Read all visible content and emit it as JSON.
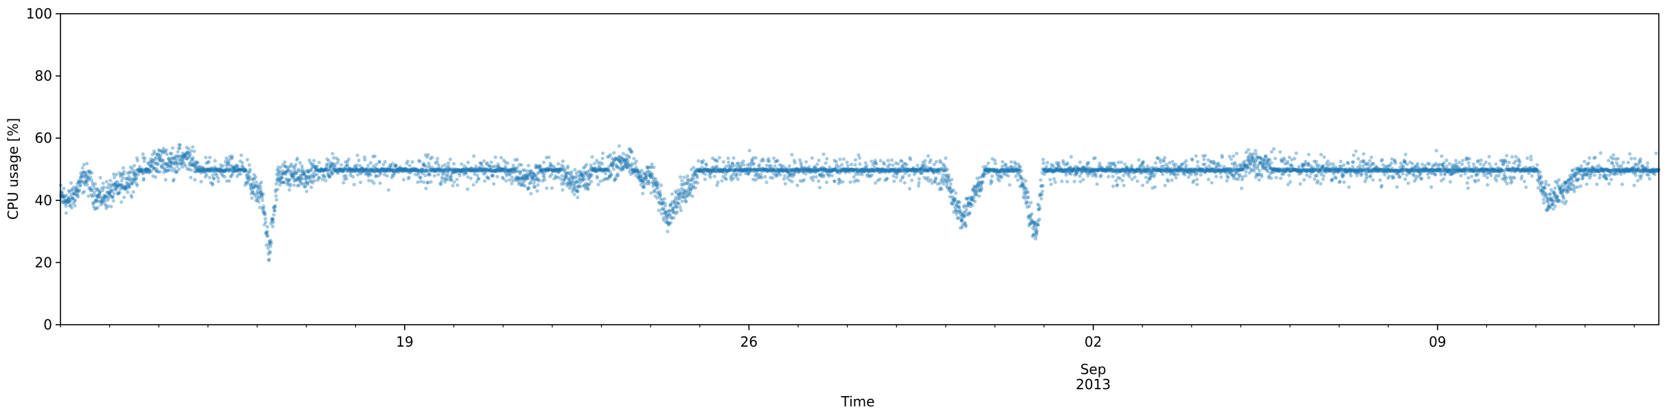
{
  "chart_data": {
    "type": "scatter",
    "title": "",
    "xlabel": "Time",
    "ylabel": "CPU usage [%]",
    "ylim": [
      0,
      100
    ],
    "yticks": [
      0,
      20,
      40,
      60,
      80,
      100
    ],
    "xlim": [
      "2013-08-12T00:00",
      "2013-09-13T12:00"
    ],
    "x_major_ticks": [
      {
        "date": "2013-08-19",
        "label": "19"
      },
      {
        "date": "2013-08-26",
        "label": "26"
      },
      {
        "date": "2013-09-02",
        "label": "02",
        "sublabel": [
          "Sep",
          "2013"
        ]
      },
      {
        "date": "2013-09-09",
        "label": "09"
      }
    ],
    "x_minor_tick_interval": "1 day",
    "grid": false,
    "legend": "none",
    "series": [
      {
        "color": "#1f77b4",
        "alpha": 0.4,
        "marker": "circle",
        "baseline_value": 49.7,
        "points": [
          [
            "2013-08-12T01:00",
            41
          ],
          [
            "2013-08-12T04:00",
            39.5
          ],
          [
            "2013-08-12T08:00",
            43
          ],
          [
            "2013-08-12T12:00",
            48
          ],
          [
            "2013-08-12T18:00",
            41
          ],
          [
            "2013-08-13T00:00",
            42
          ],
          [
            "2013-08-13T06:00",
            45
          ],
          [
            "2013-08-13T12:00",
            48
          ],
          [
            "2013-08-13T18:00",
            50
          ],
          [
            "2013-08-14T00:00",
            53
          ],
          [
            "2013-08-14T06:00",
            52
          ],
          [
            "2013-08-14T12:00",
            54
          ],
          [
            "2013-08-14T18:00",
            51
          ],
          [
            "2013-08-15T00:00",
            50
          ],
          [
            "2013-08-15T06:00",
            49
          ],
          [
            "2013-08-15T12:00",
            51
          ],
          [
            "2013-08-15T18:00",
            50
          ],
          [
            "2013-08-15T22:00",
            44
          ],
          [
            "2013-08-16T02:00",
            42
          ],
          [
            "2013-08-16T06:00",
            23.5
          ],
          [
            "2013-08-16T10:00",
            47
          ],
          [
            "2013-08-16T18:00",
            48
          ],
          [
            "2013-08-17T00:00",
            47
          ],
          [
            "2013-08-17T12:00",
            51
          ],
          [
            "2013-08-18T00:00",
            50
          ],
          [
            "2013-08-18T12:00",
            49
          ],
          [
            "2013-08-19T00:00",
            50
          ],
          [
            "2013-08-20T00:00",
            49
          ],
          [
            "2013-08-21T00:00",
            50
          ],
          [
            "2013-08-21T12:00",
            47
          ],
          [
            "2013-08-22T00:00",
            50
          ],
          [
            "2013-08-22T12:00",
            46
          ],
          [
            "2013-08-23T00:00",
            50
          ],
          [
            "2013-08-23T12:00",
            53
          ],
          [
            "2013-08-23T20:00",
            47
          ],
          [
            "2013-08-24T00:00",
            48
          ],
          [
            "2013-08-24T08:00",
            35.5
          ],
          [
            "2013-08-25T00:00",
            50
          ],
          [
            "2013-08-26T00:00",
            50
          ],
          [
            "2013-08-27T00:00",
            49
          ],
          [
            "2013-08-28T00:00",
            50
          ],
          [
            "2013-08-29T00:00",
            49
          ],
          [
            "2013-08-29T12:00",
            50
          ],
          [
            "2013-08-30T00:00",
            48
          ],
          [
            "2013-08-30T08:00",
            33.5
          ],
          [
            "2013-08-30T20:00",
            50
          ],
          [
            "2013-08-31T12:00",
            49
          ],
          [
            "2013-08-31T20:00",
            28.5
          ],
          [
            "2013-09-01T00:00",
            50
          ],
          [
            "2013-09-02T00:00",
            50
          ],
          [
            "2013-09-03T00:00",
            49
          ],
          [
            "2013-09-03T12:00",
            50
          ],
          [
            "2013-09-04T00:00",
            50
          ],
          [
            "2013-09-05T00:00",
            50
          ],
          [
            "2013-09-05T04:00",
            52
          ],
          [
            "2013-09-06T00:00",
            50
          ],
          [
            "2013-09-07T00:00",
            50
          ],
          [
            "2013-09-08T00:00",
            50
          ],
          [
            "2013-09-09T00:00",
            50
          ],
          [
            "2013-09-10T00:00",
            50
          ],
          [
            "2013-09-11T00:00",
            50
          ],
          [
            "2013-09-11T06:00",
            39.5
          ],
          [
            "2013-09-12T00:00",
            50
          ],
          [
            "2013-09-13T00:00",
            50
          ]
        ]
      }
    ]
  }
}
